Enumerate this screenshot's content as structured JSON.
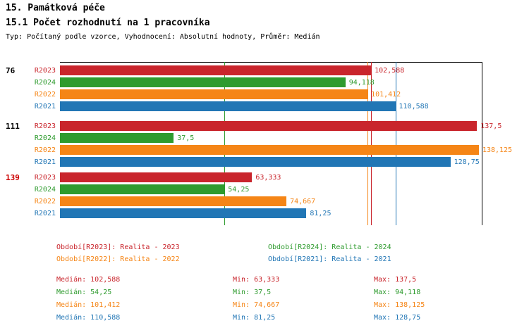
{
  "header": {
    "title": "15. Památková péče",
    "subtitle": "15.1 Počet rozhodnutí na 1 pracovníka",
    "meta": "Typ: Počítaný podle vzorce, Vyhodnocení: Absolutní hodnoty, Průměr: Medián"
  },
  "colors": {
    "R2023": "#c9252c",
    "R2024": "#2e9b2e",
    "R2022": "#f58516",
    "R2021": "#2176b5",
    "axis": "#000000",
    "group_alert": "#cc0000"
  },
  "chart_data": {
    "type": "bar",
    "orientation": "horizontal",
    "xlim": [
      0,
      139
    ],
    "series_order": [
      "R2023",
      "R2024",
      "R2022",
      "R2021"
    ],
    "groups": [
      {
        "label": "76",
        "label_color_key": "axis",
        "bars": [
          {
            "series": "R2023",
            "value": 102.588,
            "value_label": "102,588"
          },
          {
            "series": "R2024",
            "value": 94.118,
            "value_label": "94,118"
          },
          {
            "series": "R2022",
            "value": 101.412,
            "value_label": "101,412"
          },
          {
            "series": "R2021",
            "value": 110.588,
            "value_label": "110,588"
          }
        ]
      },
      {
        "label": "111",
        "label_color_key": "axis",
        "bars": [
          {
            "series": "R2023",
            "value": 137.5,
            "value_label": "137,5"
          },
          {
            "series": "R2024",
            "value": 37.5,
            "value_label": "37,5"
          },
          {
            "series": "R2022",
            "value": 138.125,
            "value_label": "138,125"
          },
          {
            "series": "R2021",
            "value": 128.75,
            "value_label": "128,75"
          }
        ]
      },
      {
        "label": "139",
        "label_color_key": "group_alert",
        "bars": [
          {
            "series": "R2023",
            "value": 63.333,
            "value_label": "63,333"
          },
          {
            "series": "R2024",
            "value": 54.25,
            "value_label": "54,25"
          },
          {
            "series": "R2022",
            "value": 74.667,
            "value_label": "74,667"
          },
          {
            "series": "R2021",
            "value": 81.25,
            "value_label": "81,25"
          }
        ]
      }
    ],
    "reference_lines": [
      {
        "name": "median-r2024",
        "value": 54.25,
        "color_key": "R2024"
      },
      {
        "name": "median-r2022",
        "value": 101.412,
        "color_key": "R2022"
      },
      {
        "name": "median-r2023",
        "value": 102.588,
        "color_key": "R2023"
      },
      {
        "name": "median-r2021",
        "value": 110.588,
        "color_key": "R2021"
      },
      {
        "name": "axis-end",
        "value": 139,
        "color_key": "axis"
      }
    ]
  },
  "legend": {
    "items": [
      {
        "label": "Období[R2023]: Realita - 2023",
        "color_key": "R2023"
      },
      {
        "label": "Období[R2024]: Realita - 2024",
        "color_key": "R2024"
      },
      {
        "label": "Období[R2022]: Realita - 2022",
        "color_key": "R2022"
      },
      {
        "label": "Období[R2021]: Realita - 2021",
        "color_key": "R2021"
      }
    ]
  },
  "stats": {
    "rows": [
      {
        "color_key": "R2023",
        "median": "Medián: 102,588",
        "min": "Min: 63,333",
        "max": "Max: 137,5"
      },
      {
        "color_key": "R2024",
        "median": "Medián: 54,25",
        "min": "Min: 37,5",
        "max": "Max: 94,118"
      },
      {
        "color_key": "R2022",
        "median": "Medián: 101,412",
        "min": "Min: 74,667",
        "max": "Max: 138,125"
      },
      {
        "color_key": "R2021",
        "median": "Medián: 110,588",
        "min": "Min: 81,25",
        "max": "Max: 128,75"
      }
    ]
  }
}
